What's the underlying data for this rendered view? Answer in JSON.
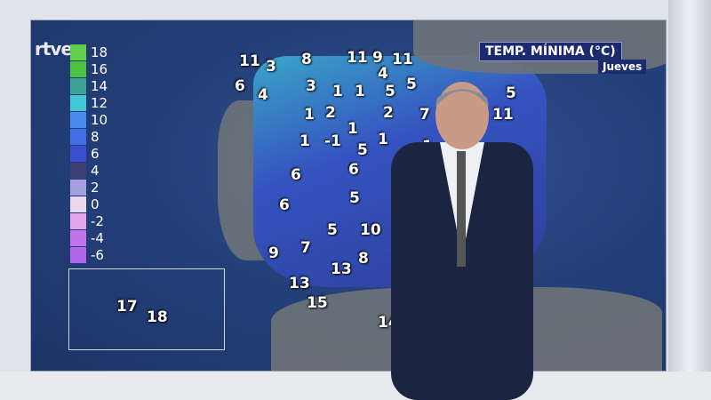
{
  "broadcaster": "rtve",
  "header": {
    "title": "TEMP. MÍNIMA (°C)",
    "day": "Jueves"
  },
  "legend": {
    "items": [
      {
        "value": "18",
        "color": "#5fd04a"
      },
      {
        "value": "16",
        "color": "#4cc440"
      },
      {
        "value": "14",
        "color": "#3fa397"
      },
      {
        "value": "12",
        "color": "#43c9d6"
      },
      {
        "value": "10",
        "color": "#4a8cf0"
      },
      {
        "value": "8",
        "color": "#3f70ea"
      },
      {
        "value": "6",
        "color": "#3a4ed0"
      },
      {
        "value": "4",
        "color": "#3b3f76"
      },
      {
        "value": "2",
        "color": "#a79ee0"
      },
      {
        "value": "0",
        "color": "#ecd8ec"
      },
      {
        "value": "-2",
        "color": "#e4a4ec"
      },
      {
        "value": "-4",
        "color": "#c272ec"
      },
      {
        "value": "-6",
        "color": "#b266ec"
      }
    ]
  },
  "temperatures": [
    "11",
    "3",
    "8",
    "11",
    "9",
    "11",
    "6",
    "4",
    "4",
    "3",
    "1",
    "1",
    "5",
    "5",
    "5",
    "1",
    "2",
    "2",
    "7",
    "2",
    "11",
    "8",
    "1",
    "-1",
    "1",
    "5",
    "1",
    "1",
    "6",
    "6",
    "9",
    "6",
    "5",
    "5",
    "10",
    "9",
    "7",
    "13",
    "8",
    "14",
    "13",
    "15",
    "14",
    "17",
    "18"
  ]
}
